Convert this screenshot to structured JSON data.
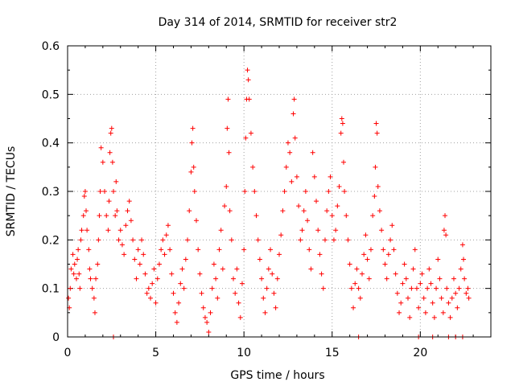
{
  "chart_data": {
    "type": "scatter",
    "title": "Day 314 of 2014, SRMTID for receiver str2",
    "xlabel": "GPS time / hours",
    "ylabel": "SRMTID / TECUs",
    "xlim": [
      0,
      24
    ],
    "ylim": [
      0,
      0.6
    ],
    "x_ticks": [
      0,
      5,
      10,
      15,
      20
    ],
    "x_tick_labels": [
      "0",
      "5",
      "10",
      "15",
      "20"
    ],
    "y_ticks": [
      0,
      0.1,
      0.2,
      0.3,
      0.4,
      0.5,
      0.6
    ],
    "y_tick_labels": [
      "0",
      "0.1",
      "0.2",
      "0.3",
      "0.4",
      "0.5",
      "0.6"
    ],
    "grid": true,
    "marker": "+",
    "color": "#ff0000",
    "series": [
      {
        "name": "SRMTID",
        "points": [
          [
            0.05,
            0.08
          ],
          [
            0.1,
            0.06
          ],
          [
            0.15,
            0.1
          ],
          [
            0.2,
            0.14
          ],
          [
            0.3,
            0.17
          ],
          [
            0.35,
            0.13
          ],
          [
            0.4,
            0.15
          ],
          [
            0.5,
            0.12
          ],
          [
            0.55,
            0.16
          ],
          [
            0.6,
            0.18
          ],
          [
            0.65,
            0.13
          ],
          [
            0.7,
            0.1
          ],
          [
            0.75,
            0.2
          ],
          [
            0.8,
            0.22
          ],
          [
            0.9,
            0.25
          ],
          [
            0.95,
            0.29
          ],
          [
            1.0,
            0.3
          ],
          [
            1.05,
            0.26
          ],
          [
            1.1,
            0.22
          ],
          [
            1.2,
            0.18
          ],
          [
            1.25,
            0.14
          ],
          [
            1.3,
            0.12
          ],
          [
            1.4,
            0.1
          ],
          [
            1.5,
            0.08
          ],
          [
            1.55,
            0.05
          ],
          [
            1.6,
            0.12
          ],
          [
            1.7,
            0.15
          ],
          [
            1.75,
            0.2
          ],
          [
            1.8,
            0.25
          ],
          [
            1.85,
            0.3
          ],
          [
            1.9,
            0.39
          ],
          [
            2.0,
            0.36
          ],
          [
            2.1,
            0.3
          ],
          [
            2.2,
            0.25
          ],
          [
            2.3,
            0.22
          ],
          [
            2.35,
            0.28
          ],
          [
            2.4,
            0.38
          ],
          [
            2.45,
            0.42
          ],
          [
            2.5,
            0.43
          ],
          [
            2.55,
            0.36
          ],
          [
            2.6,
            0.3
          ],
          [
            2.7,
            0.25
          ],
          [
            2.75,
            0.32
          ],
          [
            2.8,
            0.26
          ],
          [
            2.9,
            0.2
          ],
          [
            3.0,
            0.22
          ],
          [
            3.1,
            0.19
          ],
          [
            3.2,
            0.17
          ],
          [
            3.3,
            0.23
          ],
          [
            3.4,
            0.26
          ],
          [
            3.5,
            0.28
          ],
          [
            3.6,
            0.24
          ],
          [
            3.7,
            0.2
          ],
          [
            3.8,
            0.16
          ],
          [
            3.9,
            0.12
          ],
          [
            4.0,
            0.18
          ],
          [
            4.1,
            0.15
          ],
          [
            4.2,
            0.2
          ],
          [
            4.3,
            0.17
          ],
          [
            4.4,
            0.13
          ],
          [
            4.5,
            0.09
          ],
          [
            4.6,
            0.1
          ],
          [
            4.7,
            0.08
          ],
          [
            4.8,
            0.11
          ],
          [
            4.9,
            0.14
          ],
          [
            5.0,
            0.07
          ],
          [
            5.1,
            0.12
          ],
          [
            5.2,
            0.15
          ],
          [
            5.3,
            0.18
          ],
          [
            5.4,
            0.2
          ],
          [
            5.5,
            0.17
          ],
          [
            5.6,
            0.21
          ],
          [
            5.7,
            0.23
          ],
          [
            5.8,
            0.18
          ],
          [
            5.9,
            0.13
          ],
          [
            6.0,
            0.09
          ],
          [
            6.1,
            0.05
          ],
          [
            6.2,
            0.03
          ],
          [
            6.3,
            0.07
          ],
          [
            6.4,
            0.11
          ],
          [
            6.5,
            0.14
          ],
          [
            6.6,
            0.1
          ],
          [
            6.7,
            0.16
          ],
          [
            6.8,
            0.2
          ],
          [
            6.9,
            0.26
          ],
          [
            7.0,
            0.34
          ],
          [
            7.05,
            0.4
          ],
          [
            7.1,
            0.43
          ],
          [
            7.15,
            0.35
          ],
          [
            7.2,
            0.3
          ],
          [
            7.3,
            0.24
          ],
          [
            7.4,
            0.18
          ],
          [
            7.5,
            0.13
          ],
          [
            7.6,
            0.09
          ],
          [
            7.7,
            0.06
          ],
          [
            7.8,
            0.04
          ],
          [
            7.9,
            0.03
          ],
          [
            8.0,
            0.01
          ],
          [
            8.1,
            0.05
          ],
          [
            8.2,
            0.1
          ],
          [
            8.3,
            0.15
          ],
          [
            8.4,
            0.12
          ],
          [
            8.5,
            0.08
          ],
          [
            8.6,
            0.18
          ],
          [
            8.7,
            0.22
          ],
          [
            8.8,
            0.14
          ],
          [
            8.9,
            0.27
          ],
          [
            9.0,
            0.31
          ],
          [
            9.05,
            0.43
          ],
          [
            9.1,
            0.49
          ],
          [
            9.15,
            0.38
          ],
          [
            9.2,
            0.26
          ],
          [
            9.3,
            0.2
          ],
          [
            9.4,
            0.12
          ],
          [
            9.5,
            0.09
          ],
          [
            9.6,
            0.14
          ],
          [
            9.7,
            0.07
          ],
          [
            9.8,
            0.04
          ],
          [
            9.9,
            0.11
          ],
          [
            10.0,
            0.18
          ],
          [
            10.05,
            0.3
          ],
          [
            10.1,
            0.41
          ],
          [
            10.15,
            0.49
          ],
          [
            10.2,
            0.55
          ],
          [
            10.25,
            0.53
          ],
          [
            10.3,
            0.49
          ],
          [
            10.4,
            0.42
          ],
          [
            10.5,
            0.35
          ],
          [
            10.6,
            0.3
          ],
          [
            10.7,
            0.25
          ],
          [
            10.8,
            0.2
          ],
          [
            10.9,
            0.16
          ],
          [
            11.0,
            0.12
          ],
          [
            11.1,
            0.08
          ],
          [
            11.2,
            0.05
          ],
          [
            11.3,
            0.1
          ],
          [
            11.4,
            0.14
          ],
          [
            11.5,
            0.18
          ],
          [
            11.6,
            0.13
          ],
          [
            11.7,
            0.09
          ],
          [
            11.8,
            0.06
          ],
          [
            11.9,
            0.12
          ],
          [
            12.0,
            0.17
          ],
          [
            12.1,
            0.21
          ],
          [
            12.2,
            0.26
          ],
          [
            12.3,
            0.3
          ],
          [
            12.4,
            0.35
          ],
          [
            12.5,
            0.4
          ],
          [
            12.6,
            0.38
          ],
          [
            12.7,
            0.32
          ],
          [
            12.8,
            0.46
          ],
          [
            12.85,
            0.49
          ],
          [
            12.9,
            0.41
          ],
          [
            13.0,
            0.33
          ],
          [
            13.1,
            0.27
          ],
          [
            13.2,
            0.2
          ],
          [
            13.3,
            0.22
          ],
          [
            13.4,
            0.26
          ],
          [
            13.5,
            0.3
          ],
          [
            13.6,
            0.24
          ],
          [
            13.7,
            0.18
          ],
          [
            13.8,
            0.14
          ],
          [
            13.9,
            0.38
          ],
          [
            14.0,
            0.33
          ],
          [
            14.1,
            0.28
          ],
          [
            14.2,
            0.22
          ],
          [
            14.3,
            0.17
          ],
          [
            14.4,
            0.13
          ],
          [
            14.5,
            0.1
          ],
          [
            14.6,
            0.2
          ],
          [
            14.7,
            0.26
          ],
          [
            14.8,
            0.3
          ],
          [
            14.9,
            0.33
          ],
          [
            15.0,
            0.25
          ],
          [
            15.1,
            0.2
          ],
          [
            15.2,
            0.22
          ],
          [
            15.3,
            0.27
          ],
          [
            15.4,
            0.31
          ],
          [
            15.5,
            0.42
          ],
          [
            15.55,
            0.45
          ],
          [
            15.6,
            0.44
          ],
          [
            15.65,
            0.36
          ],
          [
            15.7,
            0.3
          ],
          [
            15.8,
            0.25
          ],
          [
            15.9,
            0.2
          ],
          [
            16.0,
            0.15
          ],
          [
            16.1,
            0.1
          ],
          [
            16.2,
            0.06
          ],
          [
            16.3,
            0.11
          ],
          [
            16.4,
            0.14
          ],
          [
            16.5,
            0.1
          ],
          [
            16.6,
            0.08
          ],
          [
            16.7,
            0.13
          ],
          [
            16.8,
            0.17
          ],
          [
            16.9,
            0.21
          ],
          [
            17.0,
            0.16
          ],
          [
            17.1,
            0.12
          ],
          [
            17.2,
            0.18
          ],
          [
            17.3,
            0.25
          ],
          [
            17.4,
            0.29
          ],
          [
            17.45,
            0.35
          ],
          [
            17.5,
            0.44
          ],
          [
            17.55,
            0.42
          ],
          [
            17.6,
            0.31
          ],
          [
            17.7,
            0.26
          ],
          [
            17.8,
            0.22
          ],
          [
            17.9,
            0.18
          ],
          [
            18.0,
            0.15
          ],
          [
            18.1,
            0.12
          ],
          [
            18.2,
            0.17
          ],
          [
            18.3,
            0.2
          ],
          [
            18.4,
            0.23
          ],
          [
            18.5,
            0.18
          ],
          [
            18.6,
            0.13
          ],
          [
            18.7,
            0.09
          ],
          [
            18.8,
            0.05
          ],
          [
            18.9,
            0.07
          ],
          [
            19.0,
            0.11
          ],
          [
            19.1,
            0.15
          ],
          [
            19.2,
            0.12
          ],
          [
            19.3,
            0.08
          ],
          [
            19.4,
            0.04
          ],
          [
            19.5,
            0.1
          ],
          [
            19.6,
            0.14
          ],
          [
            19.7,
            0.18
          ],
          [
            19.8,
            0.1
          ],
          [
            19.9,
            0.06
          ],
          [
            20.0,
            0.11
          ],
          [
            20.1,
            0.13
          ],
          [
            20.2,
            0.08
          ],
          [
            20.3,
            0.05
          ],
          [
            20.4,
            0.1
          ],
          [
            20.5,
            0.14
          ],
          [
            20.6,
            0.11
          ],
          [
            20.7,
            0.07
          ],
          [
            20.8,
            0.04
          ],
          [
            20.9,
            0.1
          ],
          [
            21.0,
            0.16
          ],
          [
            21.1,
            0.12
          ],
          [
            21.2,
            0.08
          ],
          [
            21.3,
            0.05
          ],
          [
            21.35,
            0.22
          ],
          [
            21.4,
            0.25
          ],
          [
            21.45,
            0.21
          ],
          [
            21.5,
            0.1
          ],
          [
            21.6,
            0.07
          ],
          [
            21.7,
            0.04
          ],
          [
            21.8,
            0.08
          ],
          [
            21.9,
            0.12
          ],
          [
            22.0,
            0.09
          ],
          [
            22.1,
            0.06
          ],
          [
            22.2,
            0.1
          ],
          [
            22.3,
            0.14
          ],
          [
            22.4,
            0.19
          ],
          [
            22.45,
            0.16
          ],
          [
            22.5,
            0.12
          ],
          [
            22.6,
            0.09
          ],
          [
            22.7,
            0.1
          ],
          [
            22.75,
            0.08
          ],
          [
            2.6,
            0.0
          ],
          [
            16.5,
            0.0
          ],
          [
            19.9,
            0.0
          ],
          [
            20.7,
            0.0
          ],
          [
            21.6,
            0.0
          ],
          [
            22.0,
            0.0
          ],
          [
            22.4,
            0.0
          ]
        ]
      }
    ]
  }
}
